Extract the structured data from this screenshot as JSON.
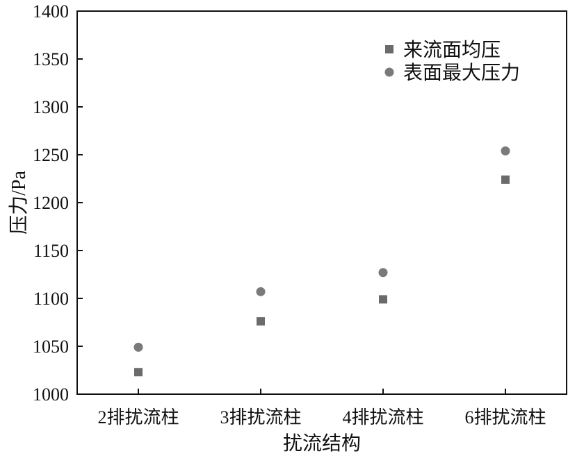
{
  "chart_data": {
    "type": "scatter",
    "categories": [
      "2排扰流柱",
      "3排扰流柱",
      "4排扰流柱",
      "6排扰流柱"
    ],
    "series": [
      {
        "name": "来流面均压",
        "marker": "square",
        "color": "#6b6b6b",
        "values": [
          1023,
          1076,
          1099,
          1224
        ]
      },
      {
        "name": "表面最大压力",
        "marker": "circle",
        "color": "#7a7a7a",
        "values": [
          1049,
          1107,
          1127,
          1254
        ]
      }
    ],
    "xlabel": "扰流结构",
    "ylabel": "压力/Pa",
    "ylim": [
      1000,
      1400
    ],
    "yticks": [
      1000,
      1050,
      1100,
      1150,
      1200,
      1250,
      1300,
      1350,
      1400
    ],
    "grid": false,
    "legend_position": "top-right"
  }
}
